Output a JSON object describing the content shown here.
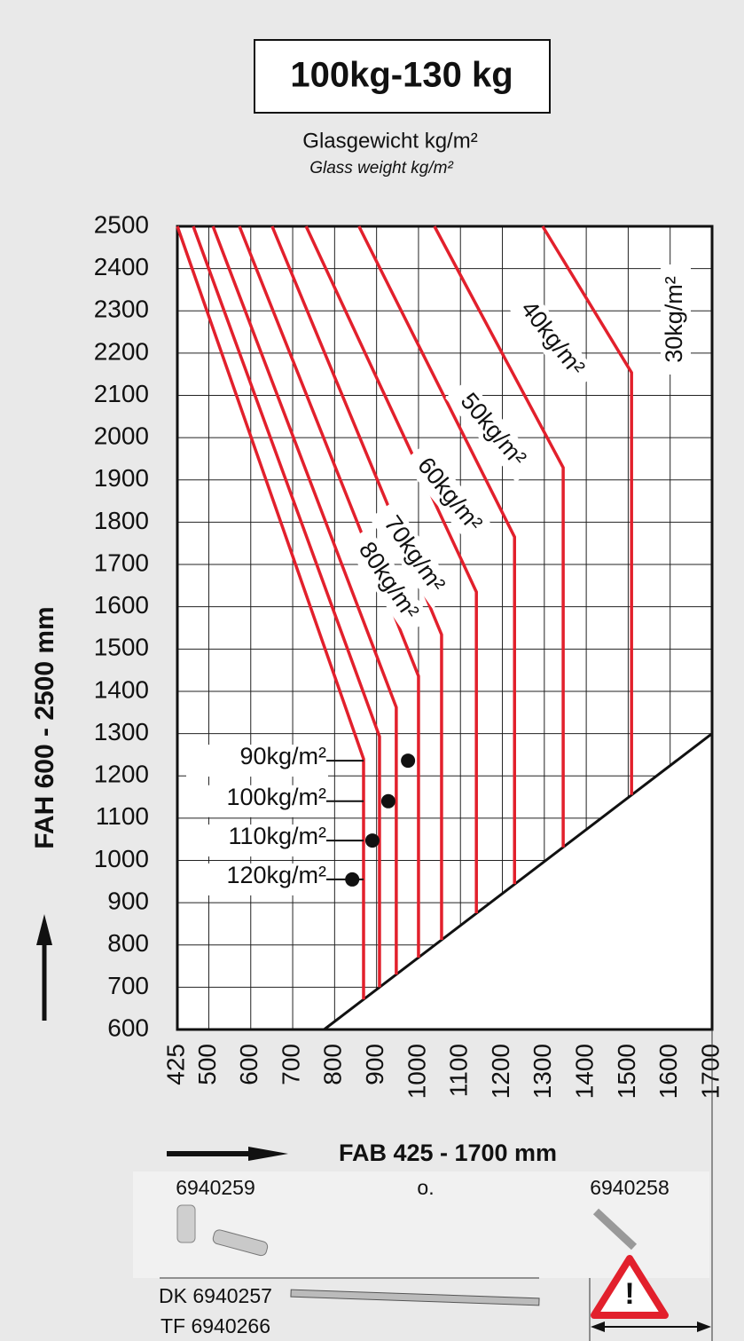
{
  "chart_data": {
    "type": "line",
    "title": "100kg-130 kg",
    "subtitle": "Glasgewicht kg/m²",
    "subtitle_en": "Glass weight kg/m²",
    "x_label": "FAB 425 - 1700 mm",
    "y_label": "FAH 600 - 2500 mm",
    "xlim": [
      425,
      1700
    ],
    "ylim": [
      600,
      2500
    ],
    "xticks": [
      425,
      500,
      600,
      700,
      800,
      900,
      1000,
      1100,
      1200,
      1300,
      1400,
      1500,
      1600,
      1700
    ],
    "yticks": [
      600,
      700,
      800,
      900,
      1000,
      1100,
      1200,
      1300,
      1400,
      1500,
      1600,
      1700,
      1800,
      1900,
      2000,
      2100,
      2200,
      2300,
      2400,
      2500
    ],
    "grid": true,
    "color": "#e2202c",
    "series": [
      {
        "x": [
          425,
          869,
          869
        ],
        "values": [
          2500,
          1240,
          671
        ]
      },
      {
        "x": [
          463,
          907,
          907
        ],
        "values": [
          2500,
          1293,
          700
        ]
      },
      {
        "x": [
          510,
          947,
          947
        ],
        "values": [
          2500,
          1362,
          730
        ]
      },
      {
        "name": "80kg/m²",
        "x": [
          573,
          1000,
          1000
        ],
        "values": [
          2500,
          1436,
          770
        ]
      },
      {
        "name": "70kg/m²",
        "x": [
          651,
          1055,
          1055
        ],
        "values": [
          2500,
          1534,
          812
        ]
      },
      {
        "name": "60kg/m²",
        "x": [
          732,
          1138,
          1138
        ],
        "values": [
          2500,
          1635,
          875
        ]
      },
      {
        "name": "50kg/m²",
        "x": [
          858,
          1229,
          1229
        ],
        "values": [
          2500,
          1765,
          944
        ]
      },
      {
        "name": "40kg/m²",
        "x": [
          1038,
          1345,
          1345
        ],
        "values": [
          2500,
          1929,
          1031
        ]
      },
      {
        "name": "30kg/m²",
        "x": [
          1296,
          1508,
          1508
        ],
        "values": [
          2500,
          2154,
          1155
        ]
      }
    ],
    "points": [
      {
        "label": "90kg/m²",
        "x": 975,
        "y": 1236
      },
      {
        "label": "100kg/m²",
        "x": 928,
        "y": 1140
      },
      {
        "label": "110kg/m²",
        "x": 890,
        "y": 1047
      },
      {
        "label": "120kg/m²",
        "x": 842,
        "y": 955
      }
    ],
    "boundary": {
      "x": [
        775,
        1700
      ],
      "values": [
        600,
        1300
      ]
    }
  },
  "parts": {
    "left_code": "6940259",
    "or": "o.",
    "right_code": "6940258",
    "dk": "DK 6940257",
    "tf": "TF 6940266"
  }
}
